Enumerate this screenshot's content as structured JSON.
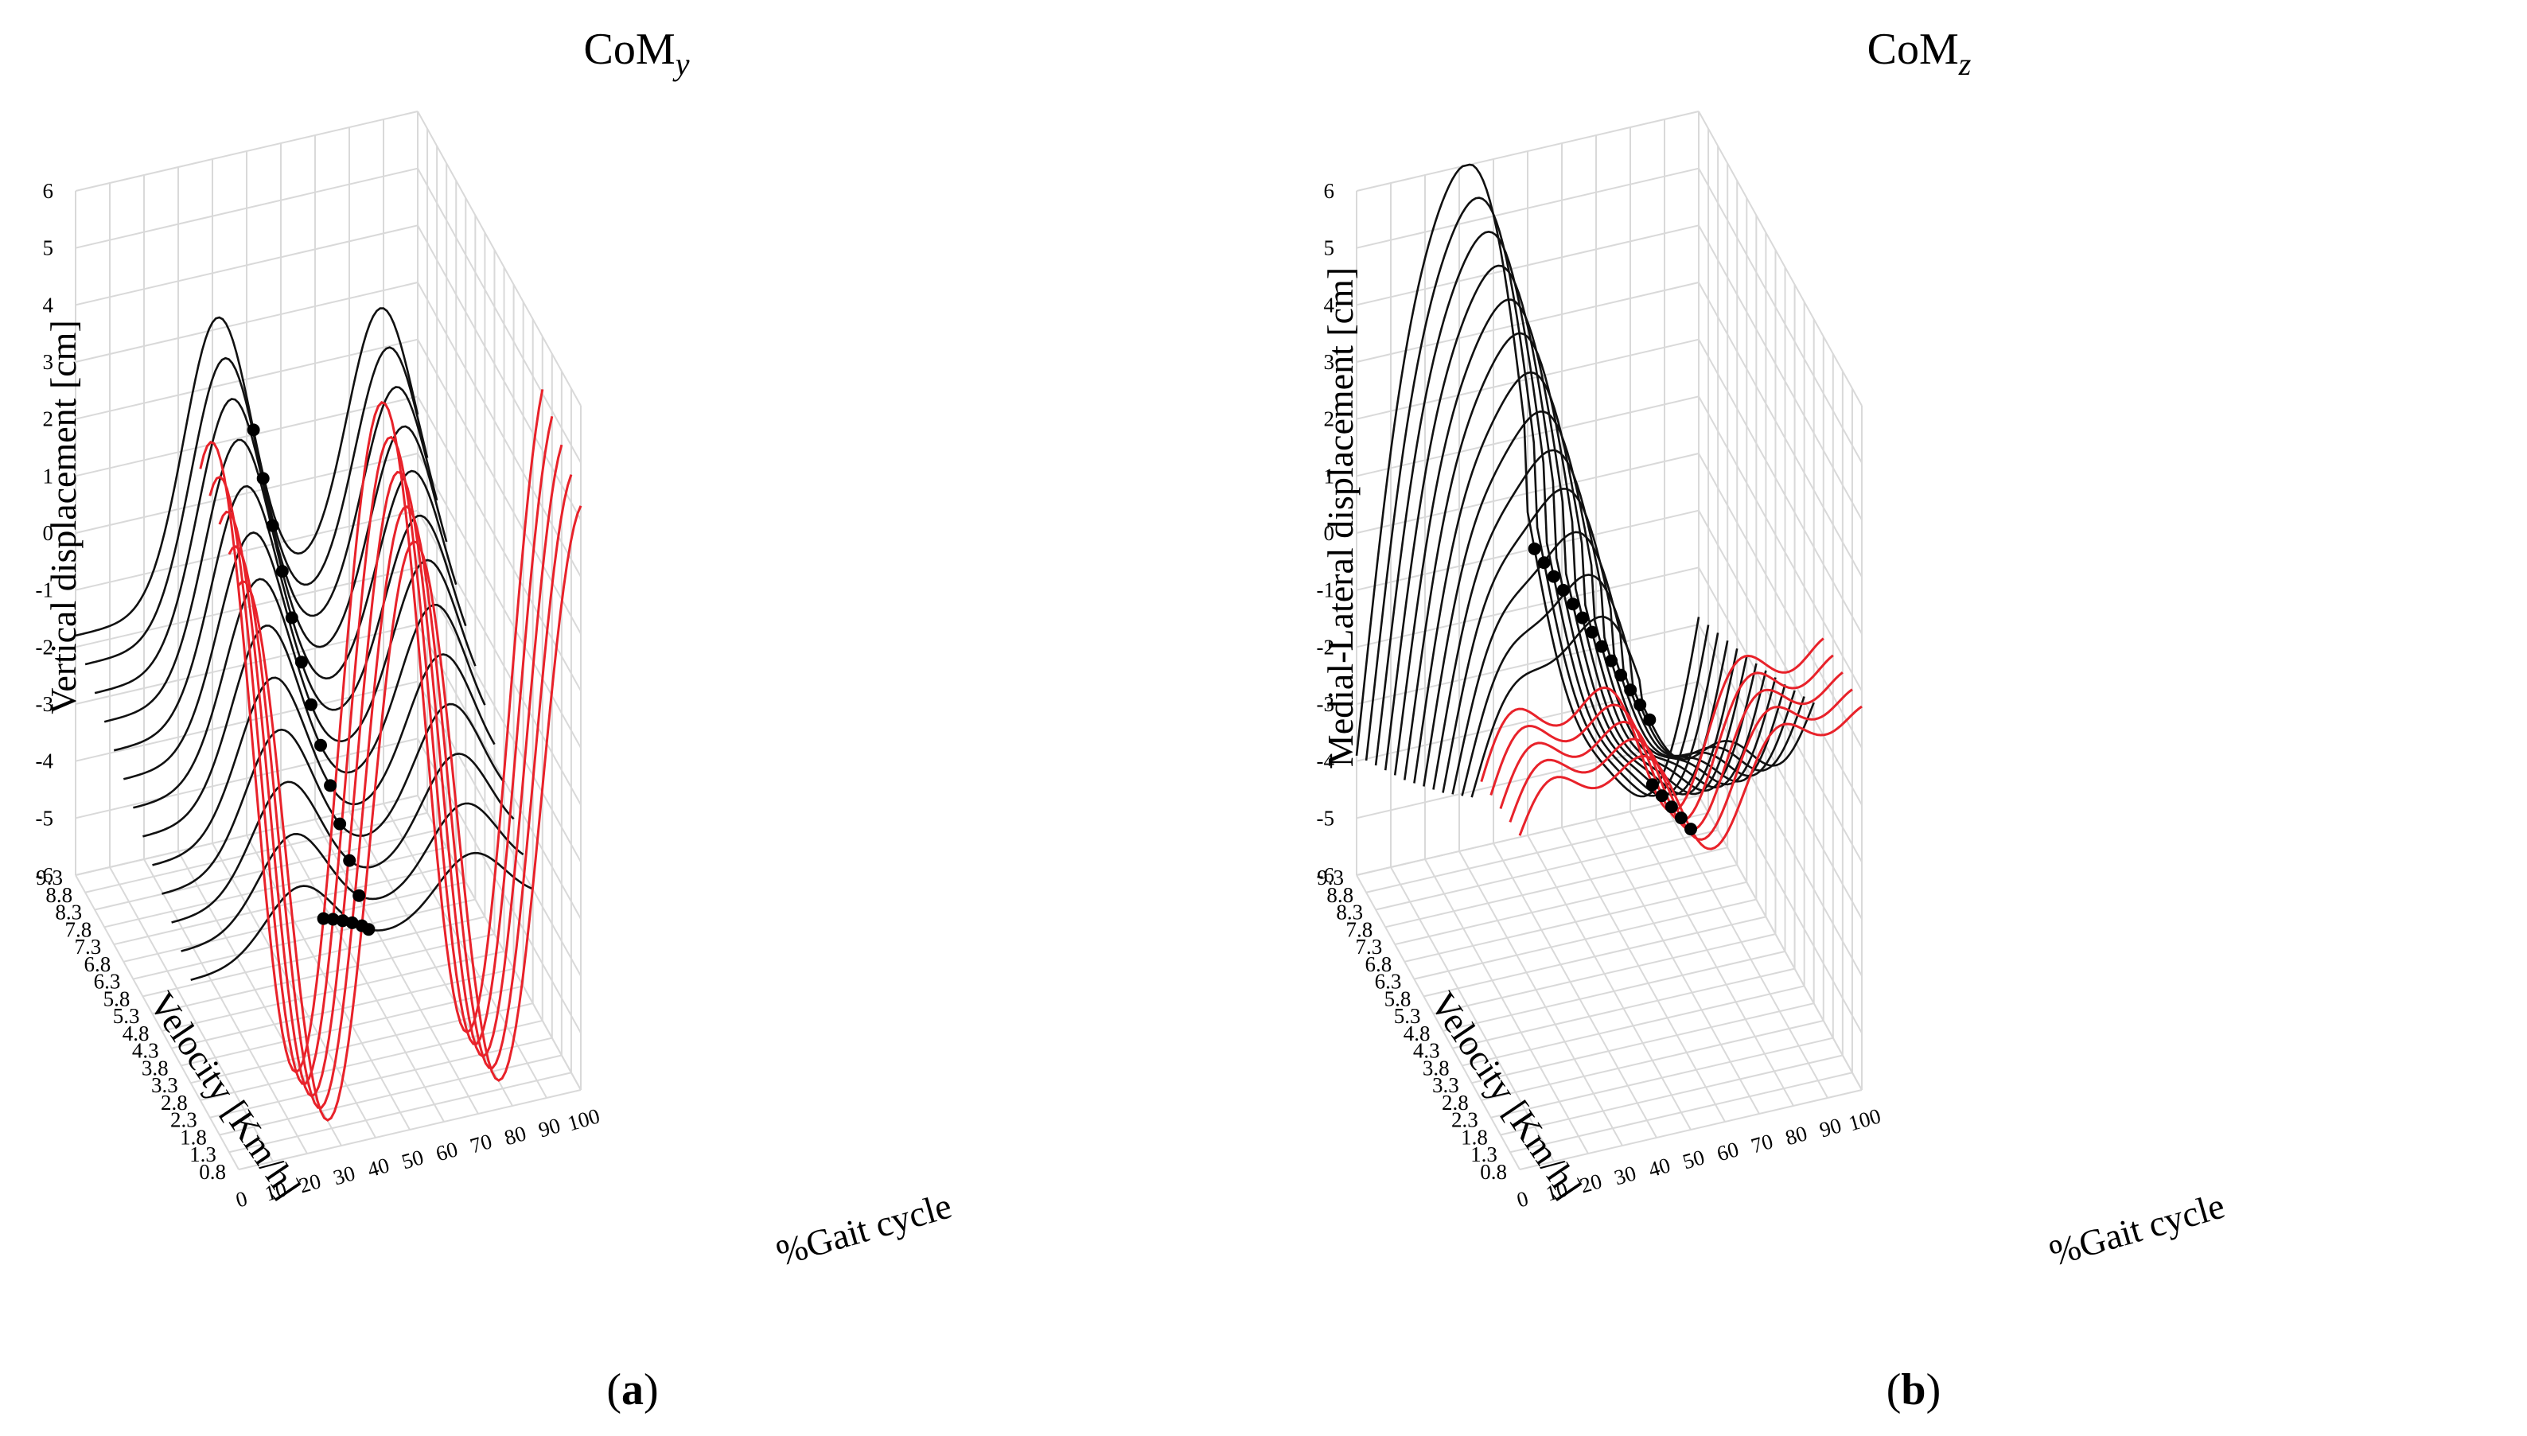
{
  "chart_data": [
    {
      "type": "line3d",
      "panel_label_open": "(",
      "panel_label_letter": "a",
      "panel_label_close": ")",
      "title_main": "CoM",
      "title_sub": "y",
      "xlabel": "%Gait cycle",
      "ylabel": "Velocity [Km/h]",
      "zlabel": "Vertical displacement [cm]",
      "x_ticks": [
        "0",
        "10",
        "20",
        "30",
        "40",
        "50",
        "60",
        "70",
        "80",
        "90",
        "100"
      ],
      "y_ticks": [
        "0.8",
        "1.3",
        "1.8",
        "2.3",
        "2.8",
        "3.3",
        "3.8",
        "4.3",
        "4.8",
        "5.3",
        "5.8",
        "6.3",
        "6.8",
        "7.3",
        "7.8",
        "8.3",
        "8.8",
        "9.3"
      ],
      "z_ticks": [
        "-6",
        "-5",
        "-4",
        "-3",
        "-2",
        "-1",
        "0",
        "1",
        "2",
        "3",
        "4",
        "5",
        "6"
      ],
      "xlim": [
        0,
        100
      ],
      "ylim": [
        0.8,
        9.3
      ],
      "zlim": [
        -6,
        6
      ],
      "series_colors": {
        "walking": "#e8222a",
        "running": "#111111",
        "marker": "#000000"
      },
      "walking_velocities": [
        0.8,
        1.3,
        1.8,
        2.3,
        2.8
      ],
      "running_velocities": [
        3.3,
        3.8,
        4.3,
        4.8,
        5.3,
        5.8,
        6.3,
        6.8,
        7.3,
        7.8,
        8.3,
        8.8,
        9.3
      ],
      "walking_profile": {
        "amplitude": [
          4.9,
          5.1,
          5.3,
          5.5,
          5.7
        ],
        "offset": [
          -0.6,
          -0.5,
          -0.4,
          -0.3,
          -0.2
        ],
        "marker_x": 36
      },
      "running_profile": {
        "amplitude": [
          1.2,
          1.6,
          2.0,
          2.4,
          2.8,
          3.2,
          3.5,
          3.8,
          4.1,
          4.4,
          4.6,
          4.8,
          5.0
        ],
        "offset": [
          -3.9,
          -3.7,
          -3.5,
          -3.3,
          -3.1,
          -2.9,
          -2.7,
          -2.5,
          -2.3,
          -2.1,
          -1.9,
          -1.7,
          -1.5
        ],
        "marker_x": 52
      }
    },
    {
      "type": "line3d",
      "panel_label_open": "(",
      "panel_label_letter": "b",
      "panel_label_close": ")",
      "title_main": "CoM",
      "title_sub": "z",
      "xlabel": "%Gait cycle",
      "ylabel": "Velocity [Km/h]",
      "zlabel": "Medial-Lateral displacement [cm]",
      "x_ticks": [
        "0",
        "10",
        "20",
        "30",
        "40",
        "50",
        "60",
        "70",
        "80",
        "90",
        "100"
      ],
      "y_ticks": [
        "0.8",
        "1.3",
        "1.8",
        "2.3",
        "2.8",
        "3.3",
        "3.8",
        "4.3",
        "4.8",
        "5.3",
        "5.8",
        "6.3",
        "6.8",
        "7.3",
        "7.8",
        "8.3",
        "8.8",
        "9.3"
      ],
      "z_ticks": [
        "-6",
        "-5",
        "-4",
        "-3",
        "-2",
        "-1",
        "0",
        "1",
        "2",
        "3",
        "4",
        "5",
        "6"
      ],
      "xlim": [
        0,
        100
      ],
      "ylim": [
        0.8,
        9.3
      ],
      "zlim": [
        -6,
        6
      ],
      "series_colors": {
        "walking": "#e8222a",
        "running": "#111111",
        "marker": "#000000"
      },
      "walking_velocities": [
        0.8,
        1.3,
        1.8,
        2.3,
        2.8
      ],
      "running_velocities": [
        3.3,
        3.8,
        4.3,
        4.8,
        5.3,
        5.8,
        6.3,
        6.8,
        7.3,
        7.8,
        8.3,
        8.8,
        9.3
      ],
      "walking_profile": {
        "amplitude": [
          1.4,
          1.5,
          1.6,
          1.7,
          1.8
        ],
        "offset": [
          0.1,
          0.05,
          0.0,
          -0.05,
          -0.1
        ],
        "marker_x": 50
      },
      "running_profile": {
        "amplitude": [
          2.0,
          2.6,
          3.2,
          3.8,
          4.3,
          4.8,
          5.3,
          5.8,
          6.2,
          6.6,
          7.0,
          7.4,
          7.8
        ],
        "offset": [
          -0.4,
          -0.5,
          -0.6,
          -0.7,
          -0.8,
          -0.9,
          -1.0,
          -1.1,
          -1.2,
          -1.3,
          -1.4,
          -1.5,
          -1.6
        ],
        "marker_x": 52
      }
    }
  ]
}
